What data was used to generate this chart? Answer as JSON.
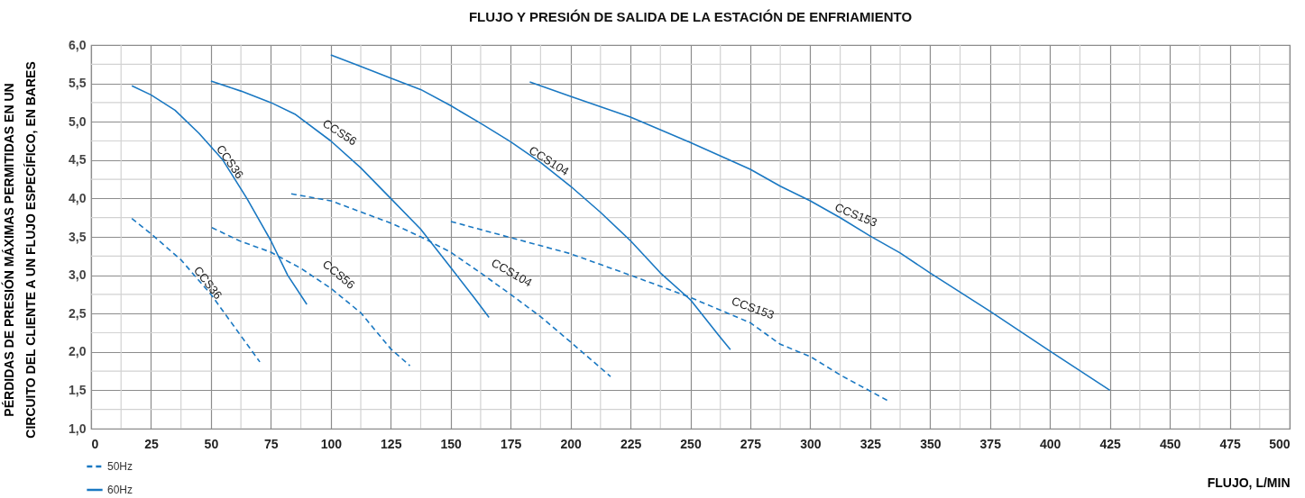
{
  "chart_data": {
    "type": "line",
    "title": "FLUJO Y PRESIÓN DE SALIDA DE LA ESTACIÓN DE ENFRIAMIENTO",
    "xlabel": "FLUJO, L/MIN",
    "ylabel": "PÉRDIDAS DE PRESIÓN MÁXIMAS PERMITIDAS EN UN CIRCUITO DEL CLIENTE A UN FLUJO ESPECÍFICO, EN BARES",
    "xlim": [
      0,
      500
    ],
    "ylim": [
      1,
      6
    ],
    "xticks": [
      0,
      {
        "value": 12.5,
        "label": null
      },
      25,
      {
        "value": 37.5,
        "label": null
      },
      50,
      {
        "value": 62.5,
        "label": null
      },
      75,
      {
        "value": 87.5,
        "label": null
      },
      100,
      {
        "value": 112.5,
        "label": null
      },
      125,
      {
        "value": 137.5,
        "label": null
      },
      150,
      {
        "value": 162.5,
        "label": null
      },
      175,
      {
        "value": 187.5,
        "label": null
      },
      200,
      {
        "value": 212.5,
        "label": null
      },
      225,
      {
        "value": 237.5,
        "label": null
      },
      250,
      {
        "value": 262.5,
        "label": null
      },
      275,
      {
        "value": 287.5,
        "label": null
      },
      300,
      {
        "value": 312.5,
        "label": null
      },
      325,
      {
        "value": 337.5,
        "label": null
      },
      350,
      {
        "value": 362.5,
        "label": null
      },
      375,
      {
        "value": 387.5,
        "label": null
      },
      400,
      {
        "value": 412.5,
        "label": null
      },
      425,
      {
        "value": 437.5,
        "label": null
      },
      450,
      {
        "value": 462.5,
        "label": null
      },
      475,
      {
        "value": 487.5,
        "label": null
      },
      500
    ],
    "yticks": [
      {
        "value": 1,
        "label": "1,0"
      },
      {
        "value": 1.25,
        "label": null
      },
      {
        "value": 1.5,
        "label": "1,5"
      },
      {
        "value": 1.75,
        "label": null
      },
      {
        "value": 2,
        "label": "2,0"
      },
      {
        "value": 2.25,
        "label": null
      },
      {
        "value": 2.5,
        "label": "2,5"
      },
      {
        "value": 2.75,
        "label": null
      },
      {
        "value": 3,
        "label": "3,0"
      },
      {
        "value": 3.25,
        "label": null
      },
      {
        "value": 3.5,
        "label": "3,5"
      },
      {
        "value": 3.75,
        "label": null
      },
      {
        "value": 4,
        "label": "4,0"
      },
      {
        "value": 4.25,
        "label": null
      },
      {
        "value": 4.5,
        "label": "4,5"
      },
      {
        "value": 4.75,
        "label": null
      },
      {
        "value": 5,
        "label": "5,0"
      },
      {
        "value": 5.25,
        "label": null
      },
      {
        "value": 5.5,
        "label": "5,5"
      },
      {
        "value": 5.75,
        "label": null
      },
      {
        "value": 6,
        "label": "6,0"
      }
    ],
    "grid": true,
    "legend": "bottom left",
    "series": [
      {
        "name": "50Hz",
        "color": "#1a78c2",
        "line_style": "dashed",
        "x": [
          17,
          25,
          37.5,
          50,
          62.5,
          70.4
        ],
        "values": [
          3.74,
          3.54,
          3.2,
          2.75,
          2.21,
          1.87
        ]
      },
      {
        "name": "60Hz",
        "color": "#1a78c2",
        "line_style": "solid",
        "x": [
          17,
          25,
          35,
          45,
          55,
          65,
          75,
          82,
          90
        ],
        "values": [
          5.47,
          5.35,
          5.15,
          4.85,
          4.5,
          4.0,
          3.45,
          3.0,
          2.62
        ]
      },
      {
        "color": "#1a78c2",
        "line_style": "dashed",
        "x": [
          50.4,
          62.5,
          75,
          87.5,
          100,
          112.5,
          125,
          133
        ],
        "values": [
          3.62,
          3.44,
          3.3,
          3.09,
          2.83,
          2.51,
          2.04,
          1.82
        ]
      },
      {
        "color": "#1a78c2",
        "line_style": "solid",
        "x": [
          50,
          62.5,
          75,
          85,
          100,
          112.5,
          125,
          137.5,
          150,
          160,
          166
        ],
        "values": [
          5.53,
          5.4,
          5.25,
          5.1,
          4.75,
          4.4,
          4.0,
          3.6,
          3.1,
          2.7,
          2.45
        ]
      },
      {
        "color": "#1a78c2",
        "line_style": "dashed",
        "x": [
          83.5,
          100,
          125,
          137.5,
          150,
          162.5,
          175,
          187.5,
          200,
          216.7
        ],
        "values": [
          4.06,
          3.97,
          3.68,
          3.5,
          3.3,
          3.03,
          2.75,
          2.46,
          2.13,
          1.68
        ]
      },
      {
        "color": "#1a78c2",
        "line_style": "solid",
        "x": [
          100,
          112.5,
          125,
          137.5,
          150,
          162.5,
          175,
          187.5,
          200,
          212.5,
          225,
          237.5,
          250,
          262,
          266.7
        ],
        "values": [
          5.87,
          5.72,
          5.57,
          5.42,
          5.21,
          4.98,
          4.74,
          4.47,
          4.16,
          3.82,
          3.45,
          3.03,
          2.68,
          2.21,
          2.03
        ]
      },
      {
        "color": "#1a78c2",
        "line_style": "dashed",
        "x": [
          150.1,
          175,
          200,
          225,
          250,
          275,
          287.5,
          300,
          312.5,
          325,
          332.6
        ],
        "values": [
          3.7,
          3.49,
          3.28,
          3.0,
          2.71,
          2.38,
          2.1,
          1.94,
          1.7,
          1.49,
          1.36
        ]
      },
      {
        "color": "#1a78c2",
        "line_style": "solid",
        "x": [
          183,
          200,
          225,
          250,
          275,
          287.5,
          300,
          312.5,
          325,
          337.5,
          350,
          375,
          400,
          425
        ],
        "values": [
          5.52,
          5.33,
          5.06,
          4.73,
          4.38,
          4.16,
          3.97,
          3.75,
          3.51,
          3.29,
          3.03,
          2.53,
          2.01,
          1.5
        ]
      }
    ],
    "annotations": [
      {
        "text": "CCS36",
        "x": 45,
        "y": 2.93
      },
      {
        "text": "CCS36",
        "x": 55,
        "y": 4.5
      },
      {
        "text": "CCS56",
        "x": 100,
        "y": 2.83
      },
      {
        "text": "CCS56",
        "x": 100,
        "y": 4.75
      },
      {
        "text": "CCS104",
        "x": 175,
        "y": 2.75
      },
      {
        "text": "CCS104",
        "x": 187.5,
        "y": 4.47
      },
      {
        "text": "CCS153",
        "x": 275,
        "y": 2.38
      },
      {
        "text": "CCS153",
        "x": 312.5,
        "y": 3.75
      }
    ]
  }
}
